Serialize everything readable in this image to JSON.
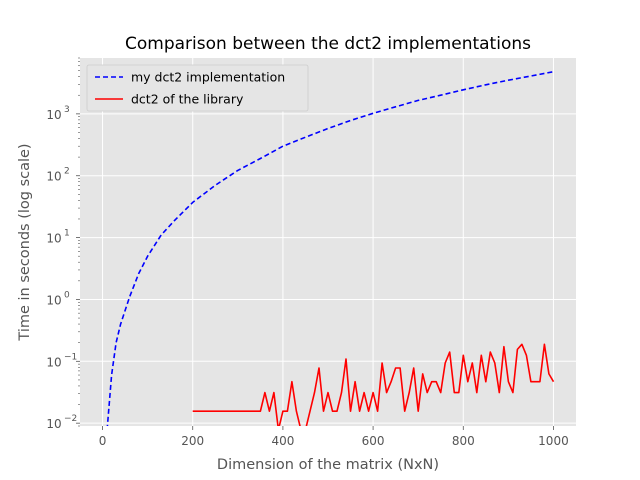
{
  "chart_data": {
    "type": "line",
    "title": "Comparison between the dct2 implementations",
    "xlabel": "Dimension of the matrix (NxN)",
    "ylabel": "Time in seconds (log scale)",
    "x_scale": "linear",
    "y_scale": "log",
    "xlim": [
      -50,
      1050
    ],
    "ylim": [
      0.009,
      8000
    ],
    "x_ticks": [
      0,
      200,
      400,
      600,
      800,
      1000
    ],
    "x_tick_labels": [
      "0",
      "200",
      "400",
      "600",
      "800",
      "1000"
    ],
    "y_ticks": [
      0.01,
      0.1,
      1,
      10,
      100,
      1000
    ],
    "y_tick_labels": [
      "10",
      "10",
      "10",
      "10",
      "10",
      "10"
    ],
    "y_tick_exponents": [
      "−2",
      "−1",
      "0",
      "1",
      "2",
      "3"
    ],
    "grid": true,
    "legend_position": "top-left",
    "series": [
      {
        "name": "my dct2 implementation",
        "color": "#0000ff",
        "style": "dashed",
        "x": [
          10,
          20,
          30,
          40,
          60,
          80,
          100,
          130,
          160,
          200,
          250,
          300,
          350,
          400,
          450,
          500,
          550,
          600,
          650,
          700,
          750,
          800,
          850,
          900,
          950,
          1000
        ],
        "y": [
          0.0078,
          0.06,
          0.2,
          0.4,
          1.1,
          2.6,
          5,
          11,
          19,
          37,
          70,
          122,
          190,
          300,
          420,
          580,
          780,
          1020,
          1300,
          1650,
          2000,
          2450,
          2950,
          3500,
          4100,
          4800
        ]
      },
      {
        "name": "dct2 of the library",
        "color": "#ff0000",
        "style": "solid",
        "x": [
          200,
          260,
          280,
          300,
          320,
          350,
          360,
          370,
          380,
          390,
          400,
          410,
          420,
          430,
          440,
          450,
          460,
          470,
          480,
          490,
          500,
          510,
          520,
          530,
          540,
          550,
          560,
          570,
          580,
          590,
          600,
          610,
          620,
          630,
          640,
          650,
          660,
          670,
          680,
          690,
          700,
          710,
          720,
          730,
          740,
          750,
          760,
          770,
          780,
          790,
          800,
          810,
          820,
          830,
          840,
          850,
          860,
          870,
          880,
          890,
          900,
          910,
          920,
          930,
          940,
          950,
          960,
          970,
          980,
          990,
          1000
        ],
        "y": [
          0.0156,
          0.0156,
          0.0156,
          0.0156,
          0.0156,
          0.0156,
          0.0312,
          0.0156,
          0.0312,
          0.0078,
          0.0156,
          0.0156,
          0.0469,
          0.0156,
          0.0078,
          0.0078,
          0.0156,
          0.0312,
          0.078,
          0.0156,
          0.0312,
          0.0156,
          0.0156,
          0.0312,
          0.109,
          0.0156,
          0.0469,
          0.0156,
          0.0312,
          0.0156,
          0.0312,
          0.0156,
          0.094,
          0.0312,
          0.0469,
          0.078,
          0.078,
          0.0156,
          0.0312,
          0.078,
          0.0156,
          0.0625,
          0.0312,
          0.0469,
          0.0469,
          0.0312,
          0.0938,
          0.141,
          0.0312,
          0.0312,
          0.125,
          0.0469,
          0.094,
          0.0312,
          0.125,
          0.0469,
          0.141,
          0.094,
          0.0312,
          0.172,
          0.0469,
          0.0312,
          0.156,
          0.188,
          0.125,
          0.0469,
          0.0469,
          0.0469,
          0.188,
          0.0625,
          0.0469
        ]
      }
    ]
  }
}
